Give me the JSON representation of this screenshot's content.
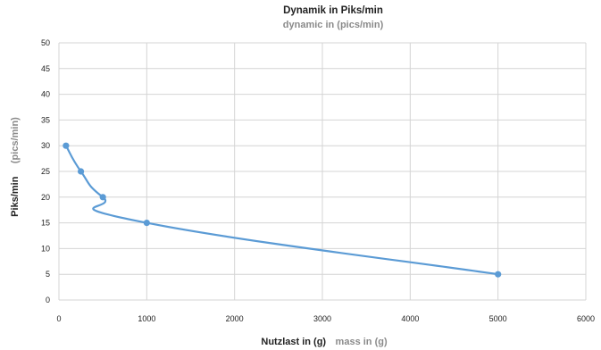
{
  "chart_data": {
    "type": "line",
    "title": "Dynamik in Piks/min",
    "subtitle": "dynamic in (pics/min)",
    "xlabel": "Nutzlast in (g)",
    "xlabel_secondary": "mass in (g)",
    "ylabel": "Piks/min",
    "ylabel_secondary": "(pics/min)",
    "xlim": [
      0,
      6000
    ],
    "ylim": [
      0,
      50
    ],
    "x_ticks": [
      "0",
      "1000",
      "2000",
      "3000",
      "4000",
      "5000",
      "6000"
    ],
    "y_ticks": [
      "0",
      "5",
      "10",
      "15",
      "20",
      "25",
      "30",
      "35",
      "40",
      "45",
      "50"
    ],
    "grid": true,
    "smooth": true,
    "series": [
      {
        "color": "#5b9bd5",
        "points": [
          {
            "x": 80,
            "y": 30
          },
          {
            "x": 250,
            "y": 25
          },
          {
            "x": 500,
            "y": 20
          },
          {
            "x": 1000,
            "y": 15
          },
          {
            "x": 5000,
            "y": 5
          }
        ]
      }
    ]
  }
}
